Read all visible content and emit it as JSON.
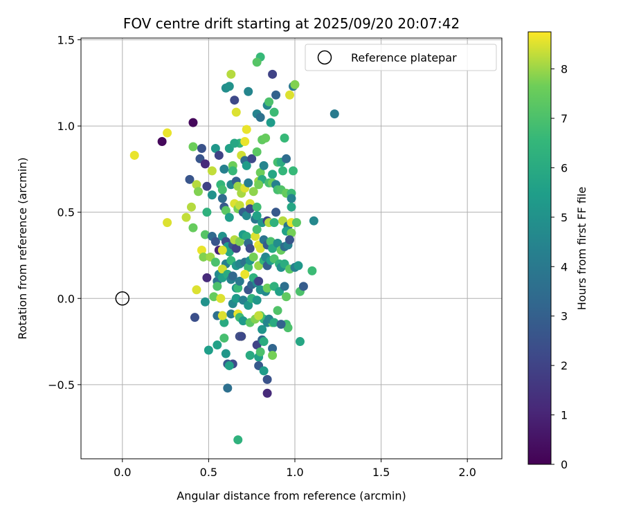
{
  "chart_data": {
    "type": "scatter",
    "title": "FOV centre drift starting at 2025/09/20 20:07:42",
    "xlabel": "Angular distance from reference (arcmin)",
    "ylabel": "Rotation from reference (arcmin)",
    "xlim": [
      -0.24,
      2.2
    ],
    "ylim": [
      -0.93,
      1.51
    ],
    "xticks": [
      0.0,
      0.5,
      1.0,
      1.5,
      2.0
    ],
    "xtick_labels": [
      "0.0",
      "0.5",
      "1.0",
      "1.5",
      "2.0"
    ],
    "yticks": [
      -0.5,
      0.0,
      0.5,
      1.0,
      1.5
    ],
    "ytick_labels": [
      "−0.5",
      "0.0",
      "0.5",
      "1.0",
      "1.5"
    ],
    "grid": true,
    "legend": {
      "position": "top-right",
      "entries": [
        "Reference platepar"
      ]
    },
    "reference_point": {
      "x": 0.0,
      "y": 0.0
    },
    "colorbar": {
      "label": "Hours from first FF file",
      "min": 0,
      "max": 8.75,
      "ticks": [
        0,
        1,
        2,
        3,
        4,
        5,
        6,
        7,
        8
      ],
      "tick_labels": [
        "0",
        "1",
        "2",
        "3",
        "4",
        "5",
        "6",
        "7",
        "8"
      ],
      "colormap": "viridis"
    },
    "points": [
      [
        0.07,
        0.83,
        8.6
      ],
      [
        0.23,
        0.91,
        0.2
      ],
      [
        0.26,
        0.96,
        8.6
      ],
      [
        0.41,
        1.02,
        0.2
      ],
      [
        0.63,
        1.3,
        8.2
      ],
      [
        0.8,
        1.4,
        6.6
      ],
      [
        0.78,
        1.37,
        7.2
      ],
      [
        0.87,
        1.3,
        2.0
      ],
      [
        0.73,
        1.2,
        4.5
      ],
      [
        0.6,
        1.22,
        4.8
      ],
      [
        0.62,
        1.23,
        5.0
      ],
      [
        0.65,
        1.15,
        2.2
      ],
      [
        0.66,
        1.08,
        8.5
      ],
      [
        0.78,
        1.07,
        4.4
      ],
      [
        0.8,
        1.05,
        3.7
      ],
      [
        0.86,
        1.02,
        5.4
      ],
      [
        0.88,
        1.08,
        6.7
      ],
      [
        0.89,
        1.18,
        3.1
      ],
      [
        0.97,
        1.18,
        8.5
      ],
      [
        0.99,
        1.23,
        4.0
      ],
      [
        1.0,
        1.24,
        7.8
      ],
      [
        0.84,
        1.12,
        4.5
      ],
      [
        0.85,
        1.14,
        7.0
      ],
      [
        1.23,
        1.07,
        4.1
      ],
      [
        0.72,
        0.98,
        8.6
      ],
      [
        0.68,
        0.9,
        6.4
      ],
      [
        0.71,
        0.91,
        8.6
      ],
      [
        0.81,
        0.92,
        7.4
      ],
      [
        0.83,
        0.93,
        7.5
      ],
      [
        0.94,
        0.93,
        6.6
      ],
      [
        0.41,
        0.88,
        7.6
      ],
      [
        0.46,
        0.87,
        2.5
      ],
      [
        0.54,
        0.87,
        5.2
      ],
      [
        0.62,
        0.87,
        5.6
      ],
      [
        0.65,
        0.9,
        5.8
      ],
      [
        0.56,
        0.83,
        2.0
      ],
      [
        0.45,
        0.81,
        2.6
      ],
      [
        0.48,
        0.78,
        1.2
      ],
      [
        0.52,
        0.74,
        8.3
      ],
      [
        0.59,
        0.75,
        4.3
      ],
      [
        0.64,
        0.77,
        7.6
      ],
      [
        0.64,
        0.74,
        6.6
      ],
      [
        0.69,
        0.83,
        8.4
      ],
      [
        0.71,
        0.8,
        3.4
      ],
      [
        0.72,
        0.77,
        5.4
      ],
      [
        0.75,
        0.81,
        2.2
      ],
      [
        0.78,
        0.85,
        7.3
      ],
      [
        0.8,
        0.73,
        7.6
      ],
      [
        0.82,
        0.77,
        4.5
      ],
      [
        0.87,
        0.72,
        5.8
      ],
      [
        0.9,
        0.79,
        6.9
      ],
      [
        0.92,
        0.79,
        6.1
      ],
      [
        0.95,
        0.81,
        3.5
      ],
      [
        0.99,
        0.74,
        6.6
      ],
      [
        0.93,
        0.74,
        6.5
      ],
      [
        0.39,
        0.69,
        2.6
      ],
      [
        0.43,
        0.66,
        8.2
      ],
      [
        0.44,
        0.62,
        7.8
      ],
      [
        0.49,
        0.65,
        2.0
      ],
      [
        0.52,
        0.6,
        5.0
      ],
      [
        0.57,
        0.66,
        6.5
      ],
      [
        0.58,
        0.63,
        6.9
      ],
      [
        0.58,
        0.58,
        3.4
      ],
      [
        0.63,
        0.66,
        4.5
      ],
      [
        0.66,
        0.68,
        3.0
      ],
      [
        0.67,
        0.65,
        8.0
      ],
      [
        0.69,
        0.61,
        8.1
      ],
      [
        0.71,
        0.64,
        8.5
      ],
      [
        0.73,
        0.67,
        4.2
      ],
      [
        0.76,
        0.62,
        7.9
      ],
      [
        0.79,
        0.68,
        8.0
      ],
      [
        0.81,
        0.69,
        6.0
      ],
      [
        0.79,
        0.66,
        7.7
      ],
      [
        0.85,
        0.67,
        6.9
      ],
      [
        0.87,
        0.67,
        7.6
      ],
      [
        0.89,
        0.66,
        4.3
      ],
      [
        0.9,
        0.63,
        6.9
      ],
      [
        0.92,
        0.63,
        7.1
      ],
      [
        0.95,
        0.61,
        7.5
      ],
      [
        0.98,
        0.61,
        6.7
      ],
      [
        0.98,
        0.58,
        4.4
      ],
      [
        0.98,
        0.53,
        5.8
      ],
      [
        0.26,
        0.44,
        8.5
      ],
      [
        0.37,
        0.47,
        8.3
      ],
      [
        0.4,
        0.53,
        8.2
      ],
      [
        0.41,
        0.41,
        7.5
      ],
      [
        0.49,
        0.5,
        6.3
      ],
      [
        0.59,
        0.53,
        2.8
      ],
      [
        0.6,
        0.51,
        7.3
      ],
      [
        0.62,
        0.47,
        5.5
      ],
      [
        0.65,
        0.55,
        8.5
      ],
      [
        0.67,
        0.52,
        7.7
      ],
      [
        0.68,
        0.54,
        8.3
      ],
      [
        0.7,
        0.5,
        3.0
      ],
      [
        0.72,
        0.48,
        4.6
      ],
      [
        0.74,
        0.55,
        8.5
      ],
      [
        0.74,
        0.52,
        2.2
      ],
      [
        0.77,
        0.46,
        3.9
      ],
      [
        0.78,
        0.53,
        6.8
      ],
      [
        0.78,
        0.48,
        5.6
      ],
      [
        0.81,
        0.44,
        5.2
      ],
      [
        0.84,
        0.45,
        2.0
      ],
      [
        0.85,
        0.44,
        8.2
      ],
      [
        0.88,
        0.44,
        6.3
      ],
      [
        0.89,
        0.5,
        2.7
      ],
      [
        0.93,
        0.45,
        8.2
      ],
      [
        0.96,
        0.42,
        3.8
      ],
      [
        0.98,
        0.44,
        8.6
      ],
      [
        1.01,
        0.44,
        7.3
      ],
      [
        0.95,
        0.39,
        5.6
      ],
      [
        0.98,
        0.38,
        7.7
      ],
      [
        1.11,
        0.45,
        4.6
      ],
      [
        0.48,
        0.37,
        7.2
      ],
      [
        0.52,
        0.36,
        3.4
      ],
      [
        0.54,
        0.33,
        2.6
      ],
      [
        0.56,
        0.28,
        1.0
      ],
      [
        0.58,
        0.36,
        5.0
      ],
      [
        0.6,
        0.33,
        2.2
      ],
      [
        0.61,
        0.3,
        5.4
      ],
      [
        0.62,
        0.27,
        5.8
      ],
      [
        0.64,
        0.31,
        2.7
      ],
      [
        0.65,
        0.34,
        8.2
      ],
      [
        0.66,
        0.29,
        2.0
      ],
      [
        0.68,
        0.33,
        7.8
      ],
      [
        0.7,
        0.37,
        5.4
      ],
      [
        0.72,
        0.36,
        6.0
      ],
      [
        0.73,
        0.32,
        3.4
      ],
      [
        0.74,
        0.29,
        2.3
      ],
      [
        0.77,
        0.36,
        8.5
      ],
      [
        0.78,
        0.4,
        6.9
      ],
      [
        0.79,
        0.31,
        8.6
      ],
      [
        0.8,
        0.29,
        8.5
      ],
      [
        0.82,
        0.34,
        3.8
      ],
      [
        0.84,
        0.31,
        2.9
      ],
      [
        0.86,
        0.33,
        7.0
      ],
      [
        0.87,
        0.29,
        5.9
      ],
      [
        0.9,
        0.32,
        4.8
      ],
      [
        0.92,
        0.28,
        7.5
      ],
      [
        0.94,
        0.3,
        3.5
      ],
      [
        0.96,
        0.31,
        4.3
      ],
      [
        0.97,
        0.34,
        2.6
      ],
      [
        0.46,
        0.28,
        8.6
      ],
      [
        0.47,
        0.24,
        7.8
      ],
      [
        0.51,
        0.24,
        8.0
      ],
      [
        0.54,
        0.21,
        7.0
      ],
      [
        0.58,
        0.28,
        8.5
      ],
      [
        0.6,
        0.2,
        4.2
      ],
      [
        0.63,
        0.22,
        6.6
      ],
      [
        0.66,
        0.19,
        5.2
      ],
      [
        0.68,
        0.2,
        4.5
      ],
      [
        0.71,
        0.21,
        3.7
      ],
      [
        0.73,
        0.18,
        6.7
      ],
      [
        0.74,
        0.22,
        5.1
      ],
      [
        0.76,
        0.24,
        7.7
      ],
      [
        0.79,
        0.19,
        8.0
      ],
      [
        0.82,
        0.22,
        6.4
      ],
      [
        0.83,
        0.24,
        4.6
      ],
      [
        0.84,
        0.19,
        3.0
      ],
      [
        0.86,
        0.22,
        5.5
      ],
      [
        0.88,
        0.23,
        7.0
      ],
      [
        0.91,
        0.2,
        6.3
      ],
      [
        0.92,
        0.18,
        4.9
      ],
      [
        0.94,
        0.2,
        6.1
      ],
      [
        0.97,
        0.17,
        7.3
      ],
      [
        1.0,
        0.18,
        4.2
      ],
      [
        1.02,
        0.19,
        5.2
      ],
      [
        1.1,
        0.16,
        6.7
      ],
      [
        0.43,
        0.05,
        8.5
      ],
      [
        0.49,
        0.12,
        1.2
      ],
      [
        0.55,
        0.1,
        3.7
      ],
      [
        0.55,
        0.07,
        7.0
      ],
      [
        0.56,
        0.14,
        4.7
      ],
      [
        0.58,
        0.17,
        8.4
      ],
      [
        0.58,
        0.12,
        5.6
      ],
      [
        0.61,
        0.14,
        6.0
      ],
      [
        0.63,
        0.11,
        4.3
      ],
      [
        0.64,
        0.13,
        3.3
      ],
      [
        0.66,
        0.06,
        5.0
      ],
      [
        0.67,
        0.06,
        6.6
      ],
      [
        0.68,
        0.1,
        4.0
      ],
      [
        0.71,
        0.14,
        8.6
      ],
      [
        0.73,
        0.05,
        2.6
      ],
      [
        0.75,
        0.08,
        3.2
      ],
      [
        0.76,
        0.12,
        6.3
      ],
      [
        0.78,
        0.09,
        4.6
      ],
      [
        0.79,
        0.1,
        2.0
      ],
      [
        0.8,
        0.05,
        5.0
      ],
      [
        0.83,
        0.04,
        4.7
      ],
      [
        0.84,
        0.06,
        7.6
      ],
      [
        0.88,
        0.07,
        6.3
      ],
      [
        0.91,
        0.04,
        5.6
      ],
      [
        0.94,
        0.07,
        3.6
      ],
      [
        0.95,
        0.01,
        7.4
      ],
      [
        1.03,
        0.04,
        7.0
      ],
      [
        1.05,
        0.07,
        2.9
      ],
      [
        0.42,
        -0.11,
        2.4
      ],
      [
        0.48,
        -0.02,
        5.0
      ],
      [
        0.53,
        0.01,
        7.5
      ],
      [
        0.57,
        0.0,
        8.5
      ],
      [
        0.58,
        -0.1,
        7.7
      ],
      [
        0.59,
        -0.14,
        6.0
      ],
      [
        0.64,
        -0.03,
        4.7
      ],
      [
        0.66,
        0.0,
        5.4
      ],
      [
        0.7,
        -0.01,
        4.3
      ],
      [
        0.73,
        -0.04,
        5.2
      ],
      [
        0.75,
        0.0,
        6.4
      ],
      [
        0.78,
        -0.01,
        5.2
      ],
      [
        0.8,
        -0.1,
        7.3
      ],
      [
        0.82,
        -0.12,
        6.6
      ],
      [
        0.84,
        -0.14,
        4.5
      ],
      [
        0.87,
        -0.14,
        7.3
      ],
      [
        0.9,
        -0.07,
        7.1
      ],
      [
        0.95,
        -0.15,
        6.8
      ],
      [
        0.96,
        -0.17,
        7.0
      ],
      [
        0.55,
        -0.1,
        3.6
      ],
      [
        0.58,
        -0.1,
        8.5
      ],
      [
        0.63,
        -0.09,
        4.1
      ],
      [
        0.67,
        -0.09,
        8.6
      ],
      [
        0.68,
        -0.11,
        6.7
      ],
      [
        0.7,
        -0.13,
        5.3
      ],
      [
        0.74,
        -0.14,
        7.3
      ],
      [
        0.77,
        -0.12,
        7.8
      ],
      [
        0.79,
        -0.1,
        8.3
      ],
      [
        0.81,
        -0.18,
        5.1
      ],
      [
        0.85,
        -0.12,
        4.4
      ],
      [
        0.88,
        -0.14,
        6.0
      ],
      [
        0.92,
        -0.15,
        3.1
      ],
      [
        0.59,
        -0.23,
        6.9
      ],
      [
        0.55,
        -0.27,
        5.6
      ],
      [
        0.5,
        -0.3,
        5.5
      ],
      [
        0.6,
        -0.32,
        5.2
      ],
      [
        0.61,
        -0.38,
        2.8
      ],
      [
        0.64,
        -0.38,
        2.3
      ],
      [
        0.62,
        -0.39,
        5.6
      ],
      [
        0.68,
        -0.22,
        2.3
      ],
      [
        0.69,
        -0.22,
        8.5
      ],
      [
        0.74,
        -0.33,
        6.0
      ],
      [
        0.78,
        -0.27,
        2.0
      ],
      [
        0.79,
        -0.34,
        5.6
      ],
      [
        0.79,
        -0.39,
        2.8
      ],
      [
        0.8,
        -0.31,
        7.0
      ],
      [
        0.81,
        -0.24,
        3.1
      ],
      [
        0.82,
        -0.25,
        6.1
      ],
      [
        0.82,
        -0.42,
        5.4
      ],
      [
        0.84,
        -0.47,
        2.5
      ],
      [
        0.87,
        -0.29,
        3.2
      ],
      [
        0.87,
        -0.33,
        7.7
      ],
      [
        1.03,
        -0.25,
        5.8
      ],
      [
        0.61,
        -0.52,
        3.6
      ],
      [
        0.84,
        -0.55,
        1.2
      ],
      [
        0.67,
        -0.82,
        6.3
      ],
      [
        0.69,
        -0.22,
        2.2
      ]
    ]
  }
}
